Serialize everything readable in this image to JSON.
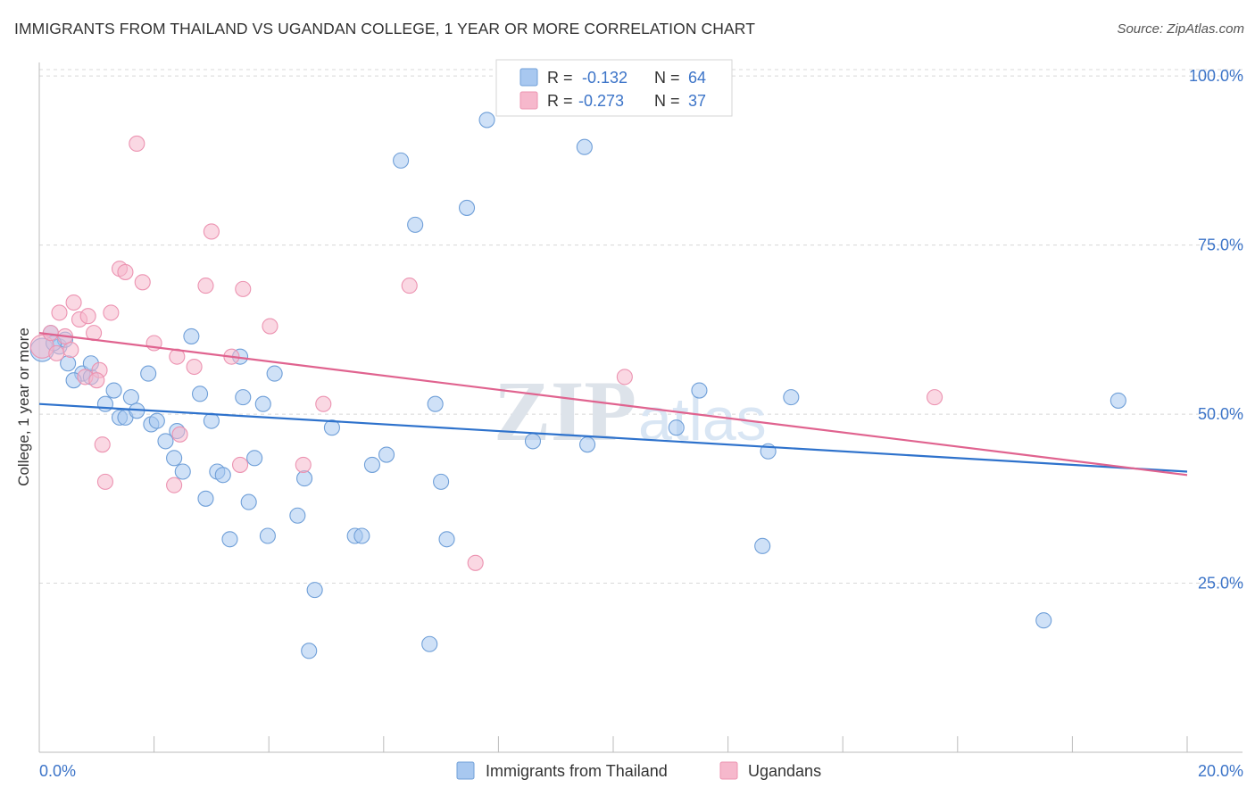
{
  "title": "IMMIGRANTS FROM THAILAND VS UGANDAN COLLEGE, 1 YEAR OR MORE CORRELATION CHART",
  "source": "Source: ZipAtlas.com",
  "watermark": {
    "zip": "ZIP",
    "atlas": "atlas"
  },
  "legend_top": {
    "rows": [
      {
        "r_label": "R =",
        "r_value": "-0.132",
        "n_label": "N =",
        "n_value": "64"
      },
      {
        "r_label": "R =",
        "r_value": "-0.273",
        "n_label": "N =",
        "n_value": "37"
      }
    ]
  },
  "legend_bottom": {
    "items": [
      "Immigrants from Thailand",
      "Ugandans"
    ]
  },
  "colors": {
    "blue_fill": "#a8c8f0",
    "blue_stroke": "#6f9fd8",
    "blue_line": "#2e72cc",
    "pink_fill": "#f6b8cc",
    "pink_stroke": "#ec93b1",
    "pink_line": "#e0638f",
    "axis_text": "#3c74c8",
    "grid": "#d8d8d8"
  },
  "chart_data": {
    "type": "scatter",
    "title": "IMMIGRANTS FROM THAILAND VS UGANDAN COLLEGE, 1 YEAR OR MORE CORRELATION CHART",
    "xlabel": "",
    "ylabel": "College, 1 year or more",
    "xlim": [
      0,
      20
    ],
    "ylim": [
      0,
      102
    ],
    "x_ticks": [
      "0.0%",
      "20.0%"
    ],
    "y_ticks": [
      "25.0%",
      "50.0%",
      "75.0%",
      "100.0%"
    ],
    "y_tick_values": [
      25,
      50,
      75,
      100
    ],
    "grid": "horizontal dashed",
    "legend_position": "top-center and bottom",
    "series": [
      {
        "name": "Immigrants from Thailand",
        "color": "#a8c8f0",
        "points": [
          [
            0.05,
            59.5
          ],
          [
            0.2,
            62
          ],
          [
            0.35,
            60
          ],
          [
            0.5,
            57.5
          ],
          [
            0.75,
            56
          ],
          [
            0.9,
            55.5
          ],
          [
            0.9,
            57.5
          ],
          [
            1.15,
            51.5
          ],
          [
            1.3,
            53.5
          ],
          [
            1.4,
            49.5
          ],
          [
            1.5,
            49.5
          ],
          [
            1.6,
            52.5
          ],
          [
            1.7,
            50.5
          ],
          [
            1.9,
            56
          ],
          [
            1.95,
            48.5
          ],
          [
            2.05,
            49
          ],
          [
            2.2,
            46
          ],
          [
            2.35,
            43.5
          ],
          [
            2.4,
            47.5
          ],
          [
            2.5,
            41.5
          ],
          [
            2.65,
            61.5
          ],
          [
            2.8,
            53
          ],
          [
            2.9,
            37.5
          ],
          [
            3.0,
            49
          ],
          [
            3.1,
            41.5
          ],
          [
            3.2,
            41
          ],
          [
            3.32,
            31.5
          ],
          [
            3.5,
            58.5
          ],
          [
            3.55,
            52.5
          ],
          [
            3.65,
            37
          ],
          [
            3.75,
            43.5
          ],
          [
            3.9,
            51.5
          ],
          [
            3.98,
            32
          ],
          [
            4.1,
            56
          ],
          [
            4.5,
            35
          ],
          [
            4.62,
            40.5
          ],
          [
            4.8,
            24
          ],
          [
            5.1,
            48
          ],
          [
            5.5,
            32
          ],
          [
            5.62,
            32
          ],
          [
            5.8,
            42.5
          ],
          [
            6.05,
            44
          ],
          [
            6.3,
            87.5
          ],
          [
            6.55,
            78
          ],
          [
            6.8,
            16
          ],
          [
            6.9,
            51.5
          ],
          [
            7.0,
            40
          ],
          [
            7.1,
            31.5
          ],
          [
            7.45,
            80.5
          ],
          [
            7.8,
            93.5
          ],
          [
            4.7,
            15
          ],
          [
            8.6,
            46
          ],
          [
            9.5,
            89.5
          ],
          [
            9.55,
            45.5
          ],
          [
            11.1,
            48
          ],
          [
            11.5,
            53.5
          ],
          [
            12.6,
            30.5
          ],
          [
            12.7,
            44.5
          ],
          [
            13.1,
            52.5
          ],
          [
            17.5,
            19.5
          ],
          [
            18.8,
            52
          ],
          [
            0.45,
            61
          ],
          [
            0.25,
            60.5
          ],
          [
            0.6,
            55
          ]
        ]
      },
      {
        "name": "Ugandans",
        "color": "#f6b8cc",
        "points": [
          [
            0.05,
            60
          ],
          [
            0.2,
            62
          ],
          [
            0.3,
            59
          ],
          [
            0.45,
            61.5
          ],
          [
            0.6,
            66.5
          ],
          [
            0.7,
            64
          ],
          [
            0.8,
            55.5
          ],
          [
            0.85,
            64.5
          ],
          [
            0.95,
            62
          ],
          [
            1.05,
            56.5
          ],
          [
            1.1,
            45.5
          ],
          [
            1.15,
            40
          ],
          [
            1.25,
            65
          ],
          [
            1.4,
            71.5
          ],
          [
            1.5,
            71
          ],
          [
            1.7,
            90
          ],
          [
            1.8,
            69.5
          ],
          [
            2.0,
            60.5
          ],
          [
            2.35,
            39.5
          ],
          [
            2.4,
            58.5
          ],
          [
            2.45,
            47
          ],
          [
            2.7,
            57
          ],
          [
            2.9,
            69
          ],
          [
            3.0,
            77
          ],
          [
            3.35,
            58.5
          ],
          [
            3.5,
            42.5
          ],
          [
            3.55,
            68.5
          ],
          [
            4.02,
            63
          ],
          [
            4.6,
            42.5
          ],
          [
            4.95,
            51.5
          ],
          [
            6.45,
            69
          ],
          [
            7.6,
            28
          ],
          [
            10.2,
            55.5
          ],
          [
            15.6,
            52.5
          ],
          [
            0.35,
            65
          ],
          [
            0.55,
            59.5
          ],
          [
            1.0,
            55
          ]
        ]
      }
    ],
    "trend_lines": [
      {
        "series": "Immigrants from Thailand",
        "x": [
          0,
          20
        ],
        "y": [
          51.5,
          41.5
        ]
      },
      {
        "series": "Ugandans",
        "x": [
          0,
          20
        ],
        "y": [
          62,
          41
        ]
      }
    ]
  }
}
